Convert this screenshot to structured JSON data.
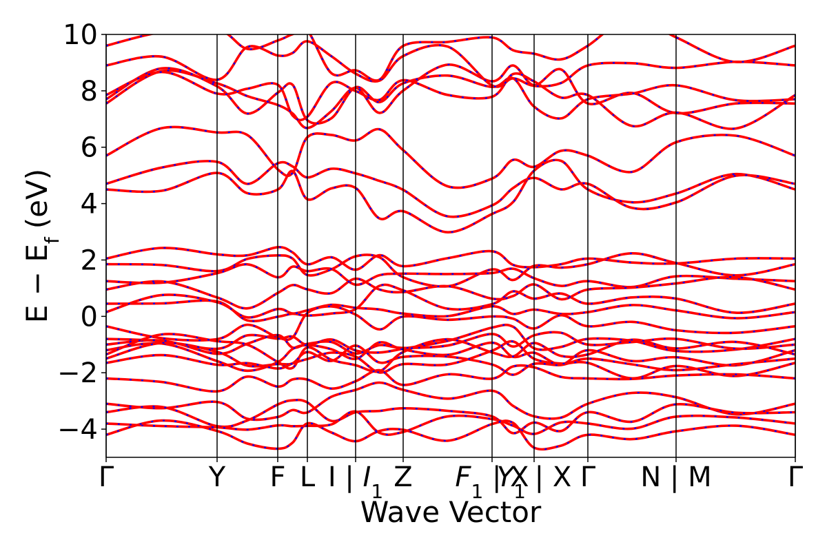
{
  "chart_data": {
    "type": "line",
    "title": "",
    "xlabel": "Wave Vector",
    "ylabel": "E − E",
    "ylabel_subscript": "f",
    "ylabel_unit": "(eV)",
    "ylim": [
      -5,
      10
    ],
    "y_ticks": [
      10,
      8,
      6,
      4,
      2,
      0,
      -2,
      -4
    ],
    "y_tick_labels": [
      "10",
      "8",
      "6",
      "4",
      "2",
      "0",
      "−2",
      "−4"
    ],
    "x_range": [
      0,
      1
    ],
    "high_symmetry_points": [
      {
        "x": 0.0,
        "label": "Γ"
      },
      {
        "x": 0.161,
        "label": "Y"
      },
      {
        "x": 0.249,
        "label": "F"
      },
      {
        "x": 0.292,
        "label": "L"
      },
      {
        "x": 0.362,
        "label": "I | I₁"
      },
      {
        "x": 0.431,
        "label": "Z"
      },
      {
        "x": 0.56,
        "label": "F₁ | X"
      },
      {
        "x": 0.621,
        "label": "Y₁ | X"
      },
      {
        "x": 0.699,
        "label": "Γ"
      },
      {
        "x": 0.827,
        "label": "N | M"
      },
      {
        "x": 1.0,
        "label": "Γ"
      }
    ],
    "tick_label_parts": [
      [
        {
          "t": "Γ"
        }
      ],
      [
        {
          "t": "Y"
        }
      ],
      [
        {
          "t": "F"
        }
      ],
      [
        {
          "t": "L"
        }
      ],
      [
        {
          "t": "I | "
        },
        {
          "t": "I",
          "i": true
        },
        {
          "t": "1",
          "sub": true
        }
      ],
      [
        {
          "t": "Z"
        }
      ],
      [
        {
          "t": "F",
          "i": true
        },
        {
          "t": "1",
          "sub": true
        },
        {
          "t": " | X"
        }
      ],
      [
        {
          "t": "Y",
          "i": true
        },
        {
          "t": "1",
          "sub": true
        },
        {
          "t": " | X"
        }
      ],
      [
        {
          "t": "Γ"
        }
      ],
      [
        {
          "t": "N | M"
        }
      ],
      [
        {
          "t": "Γ"
        }
      ]
    ],
    "series_style": [
      {
        "color": "#ff0000",
        "dash": "solid"
      },
      {
        "color": "#0000ff",
        "dash": "dotted"
      }
    ],
    "valence_bands_at_gamma": [
      2.05,
      1.85,
      1.25,
      0.95,
      0.45,
      0.15,
      -0.35,
      -0.8,
      -1.0,
      -1.2,
      -1.35,
      -1.5,
      -1.65,
      -2.2,
      -3.1,
      -3.4,
      -3.8,
      -4.2
    ],
    "conduction_bands_at_gamma": [
      4.5,
      4.7,
      5.7,
      7.55,
      7.7,
      7.85,
      8.9,
      9.6
    ],
    "grid": false,
    "legend": "none"
  }
}
